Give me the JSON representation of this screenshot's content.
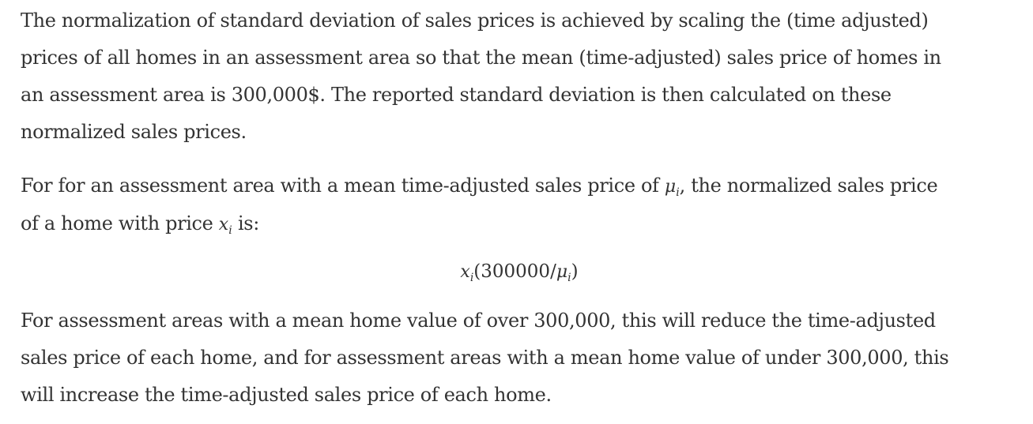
{
  "paragraph1": {
    "lines": [
      "The normalization of standard deviation of sales prices is achieved by scaling the (time adjusted)",
      "prices of all homes in an assessment area so that the mean (time-adjusted) sales price of homes in",
      "an assessment area is 300,000$. The reported standard deviation is then calculated on these",
      "normalized sales prices."
    ]
  },
  "paragraph2": {
    "line1_before": "For for an assessment area with a mean time-adjusted sales price of ",
    "mu_symbol": "μ",
    "mu_subscript": "i",
    "line1_after": ", the normalized sales price",
    "line2_before": "of a home with price ",
    "x_symbol": "x",
    "x_subscript": "i",
    "line2_after": " is:"
  },
  "formula": {
    "x_symbol": "x",
    "x_subscript": "i",
    "open": "(300000/",
    "mu_symbol": "μ",
    "mu_subscript": "i",
    "close": ")"
  },
  "paragraph3": {
    "lines": [
      "For assessment areas with a mean home value of over 300,000, this will reduce the time-adjusted",
      "sales price of each home, and for assessment areas with a mean home value of under 300,000, this",
      "will increase the time-adjusted sales price of each home."
    ]
  }
}
